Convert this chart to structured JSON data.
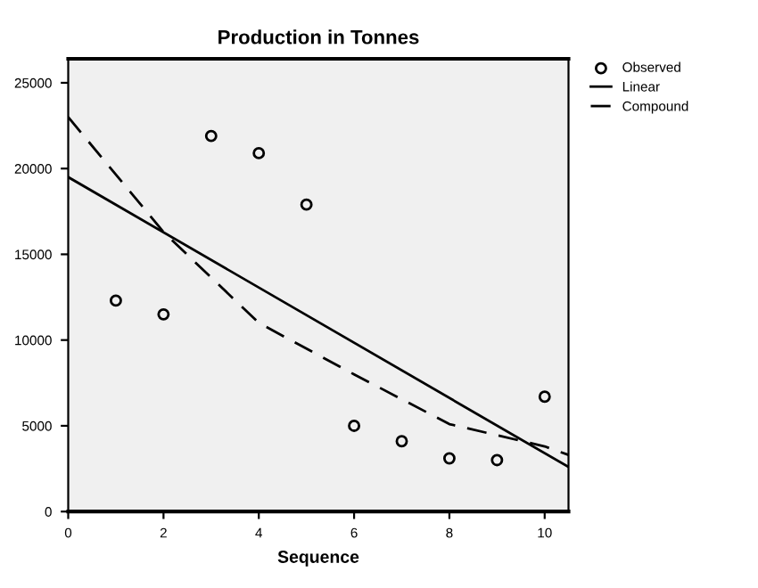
{
  "chart_data": {
    "type": "scatter",
    "title": "Production in Tonnes",
    "xlabel": "Sequence",
    "xlim": [
      0,
      10.5
    ],
    "xticks": [
      0,
      2,
      4,
      6,
      8,
      10
    ],
    "ylim": [
      0,
      26400
    ],
    "yticks": [
      0,
      5000,
      10000,
      15000,
      20000,
      25000
    ],
    "legend": "top right",
    "grid": false,
    "series": [
      {
        "name": "Observed",
        "marker": "circle",
        "color": "#000000",
        "x": [
          1,
          2,
          3,
          4,
          5,
          6,
          7,
          8,
          9,
          10
        ],
        "values": [
          12300,
          11500,
          21900,
          20900,
          17900,
          5000,
          4100,
          3100,
          3000,
          6700
        ]
      },
      {
        "name": "Linear",
        "type": "line",
        "line_style": "solid",
        "color": "#000000",
        "x": [
          0,
          10.5
        ],
        "values": [
          19500,
          2600
        ]
      },
      {
        "name": "Compound",
        "type": "line",
        "line_style": "dashed",
        "color": "#000000",
        "x": [
          0,
          2,
          4,
          6,
          8,
          10,
          10.5
        ],
        "values": [
          23000,
          16300,
          11000,
          8000,
          5100,
          3800,
          3300
        ]
      }
    ]
  }
}
